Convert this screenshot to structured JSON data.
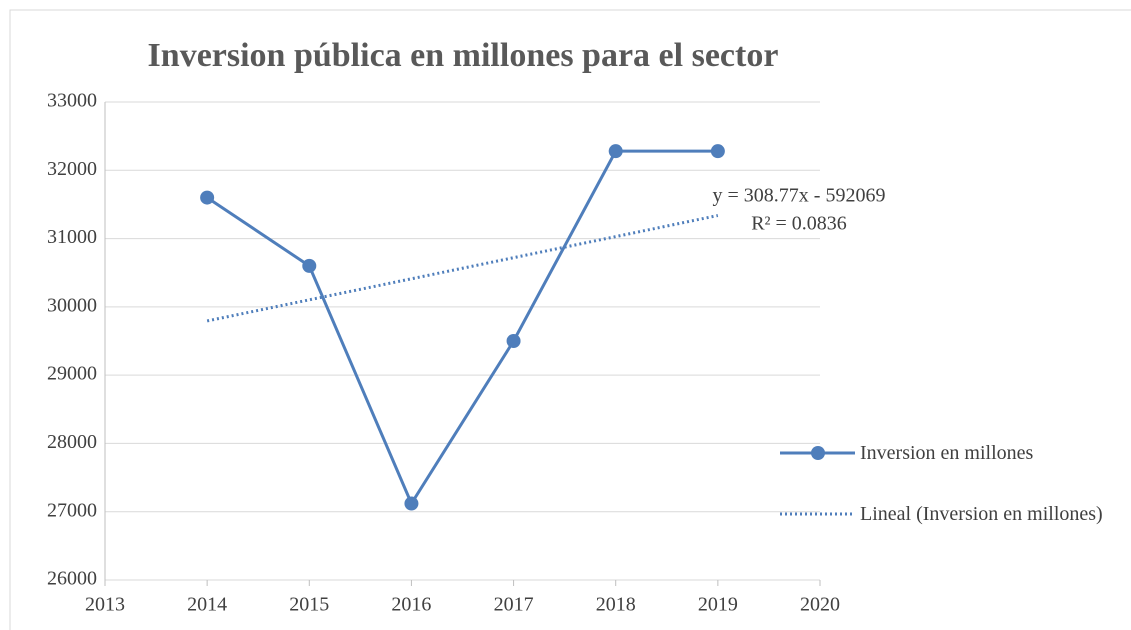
{
  "chart_data": {
    "type": "line",
    "title": "Inversion pública en millones para el sector",
    "x": [
      2014,
      2015,
      2016,
      2017,
      2018,
      2019
    ],
    "series": [
      {
        "name": "Inversion en millones",
        "color": "#4f7ebb",
        "values": [
          31600,
          30600,
          27120,
          29500,
          32280,
          32280
        ]
      },
      {
        "name": "Lineal (Inversion en millones)",
        "color": "#4f7ebb",
        "style": "dotted",
        "values": [
          29794,
          30103,
          30411,
          30720,
          31029,
          31338
        ]
      }
    ],
    "annotations": [
      "y = 308.77x - 592069",
      "R² = 0.0836"
    ],
    "xlim": [
      2013,
      2020
    ],
    "xticks": [
      2013,
      2014,
      2015,
      2016,
      2017,
      2018,
      2019,
      2020
    ],
    "ylim": [
      26000,
      33000
    ],
    "yticks": [
      26000,
      27000,
      28000,
      29000,
      30000,
      31000,
      32000,
      33000
    ],
    "grid": true,
    "legend": "right"
  }
}
